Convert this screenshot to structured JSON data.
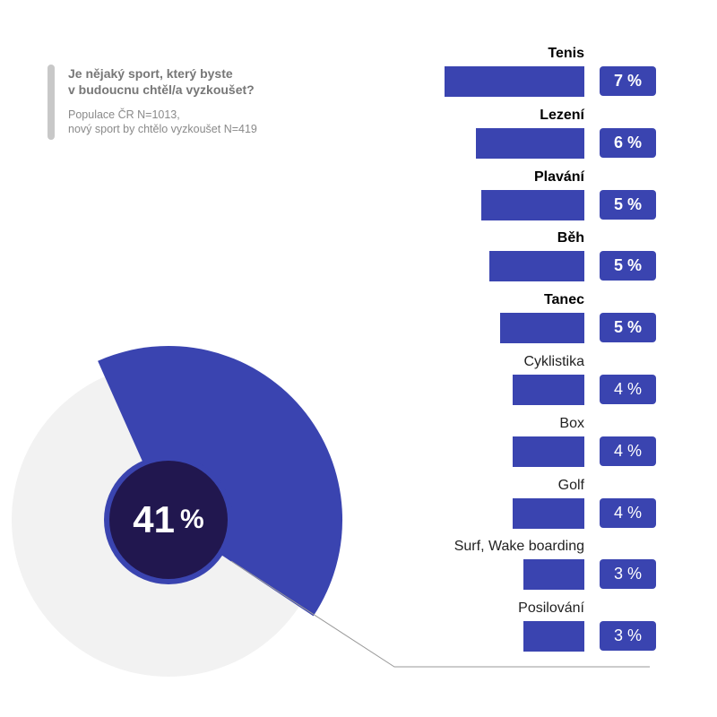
{
  "question": {
    "title_line1": "Je nějaký sport, který byste",
    "title_line2": "v budoucnu chtěl/a vyzkoušet?",
    "sub_line1": "Populace ČR N=1013,",
    "sub_line2": "nový sport by chtělo vyzkoušet N=419"
  },
  "donut": {
    "value": 41,
    "value_text": "41",
    "unit": "%"
  },
  "colors": {
    "accent": "#3a44b0",
    "donut_bg": "#f2f2f2",
    "center": "#21174f",
    "leader": "#9a9a9a"
  },
  "chart_data": [
    {
      "type": "pie",
      "title": "",
      "slices": [
        {
          "label": "",
          "value": 41
        },
        {
          "label": "",
          "value": 59
        }
      ]
    },
    {
      "type": "bar",
      "orientation": "horizontal",
      "title": "Je nějaký sport, který byste v budoucnu chtěl/a vyzkoušet?",
      "categories": [
        "Tenis",
        "Lezení",
        "Plavání",
        "Běh",
        "Tanec",
        "Cyklistika",
        "Box",
        "Golf",
        "Surf, Wake boarding",
        "Posilování"
      ],
      "values": [
        7,
        6,
        5,
        5,
        5,
        4,
        4,
        4,
        3,
        3
      ],
      "value_labels": [
        "7 %",
        "6 %",
        "5 %",
        "5 %",
        "5 %",
        "4 %",
        "4 %",
        "4 %",
        "3 %",
        "3 %"
      ],
      "bar_values_approx": [
        5.3,
        4.1,
        3.9,
        3.6,
        3.2,
        2.7,
        2.7,
        2.7,
        2.3,
        2.3
      ],
      "highlighted_count": 5,
      "unit": "%"
    }
  ]
}
